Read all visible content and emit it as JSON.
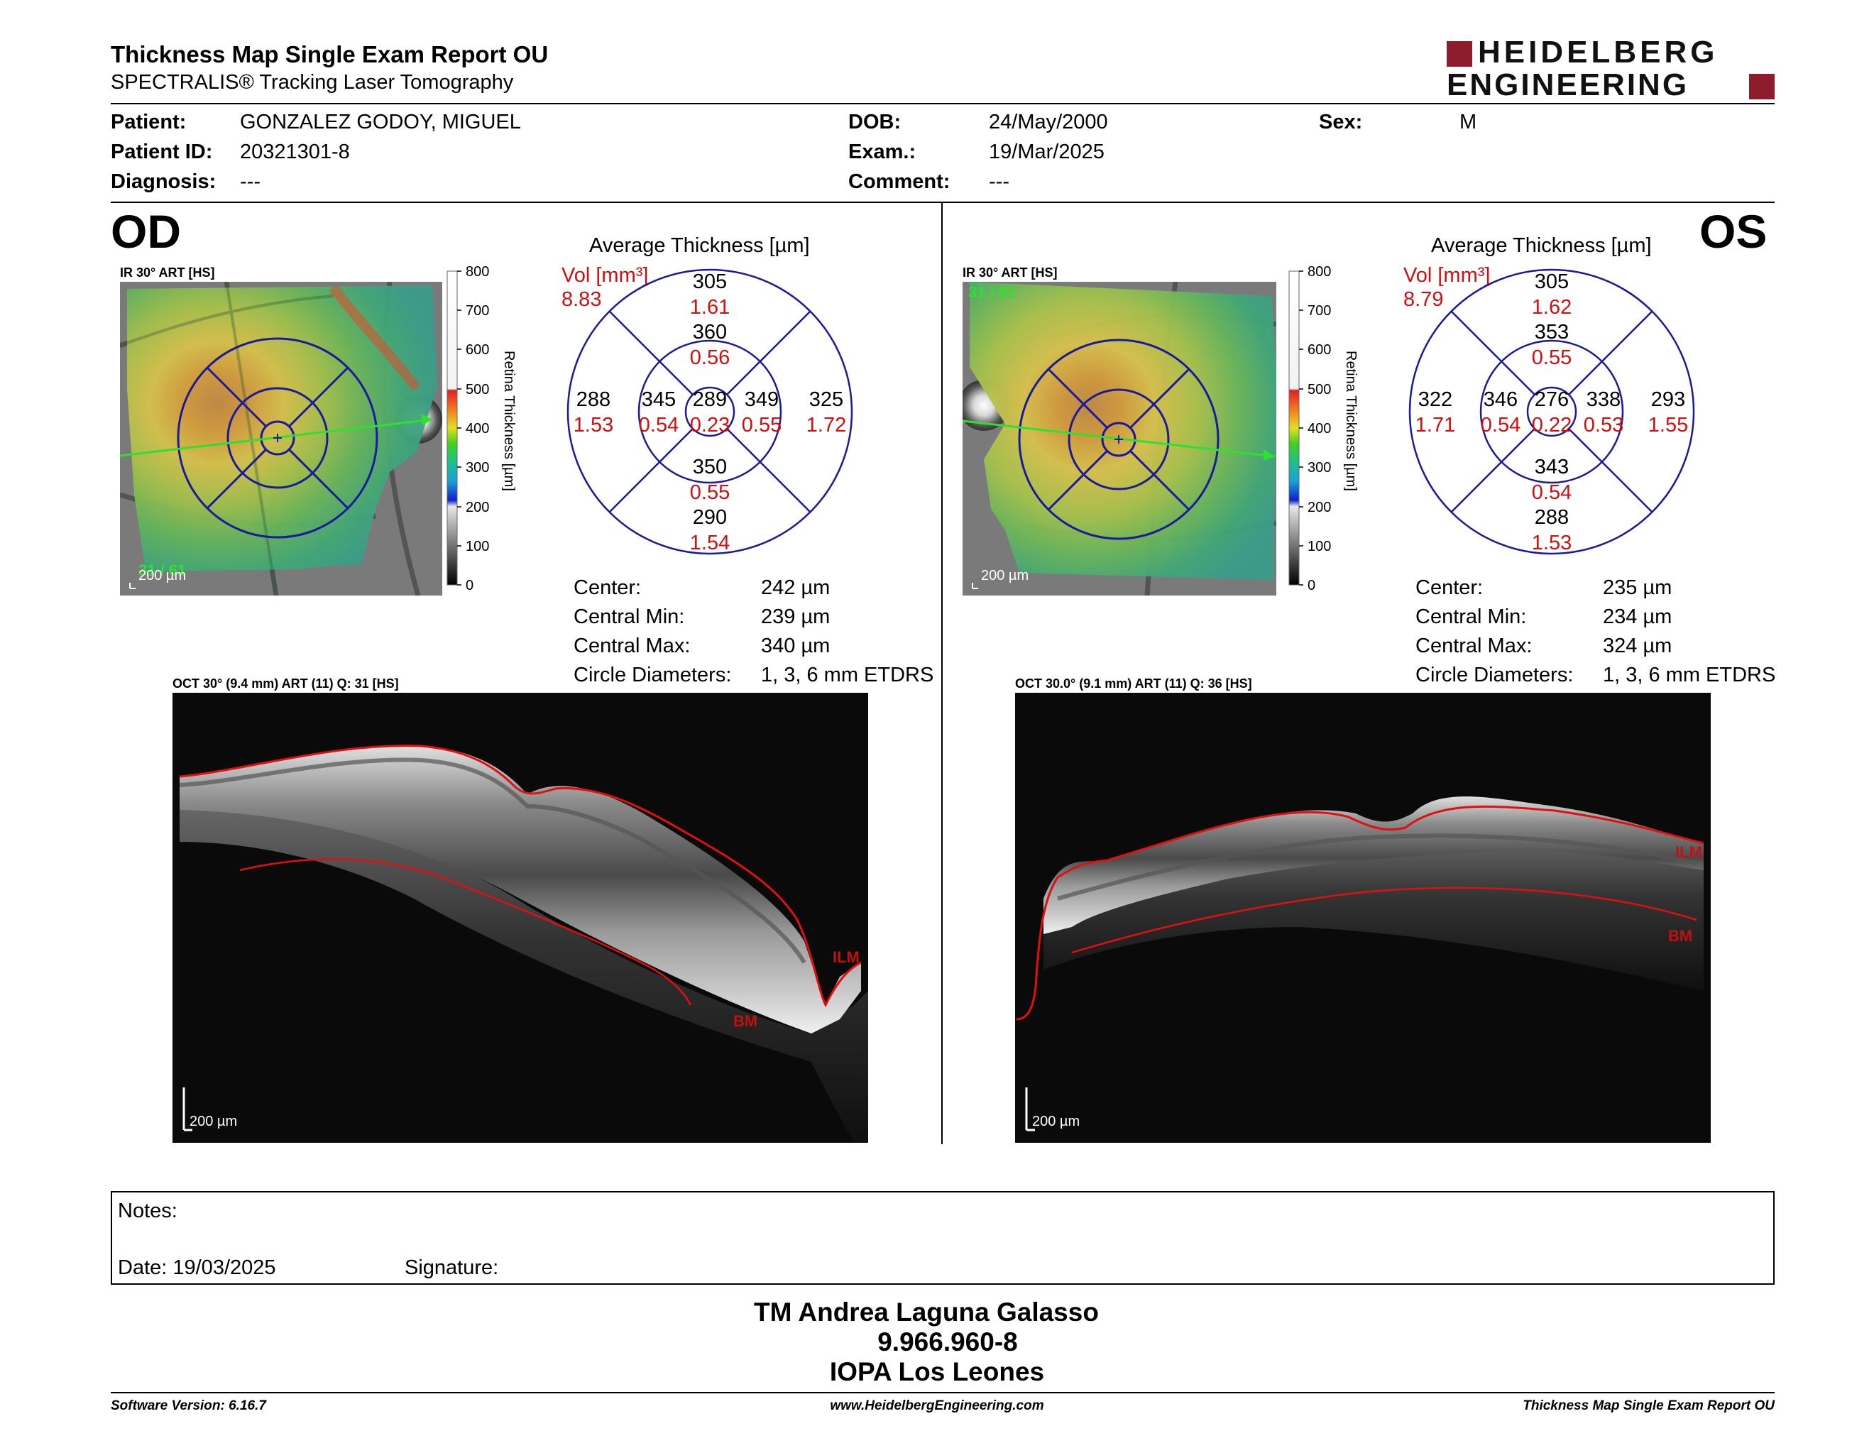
{
  "header": {
    "title": "Thickness Map Single Exam Report OU",
    "subtitle": "SPECTRALIS® Tracking Laser Tomography",
    "logo_line1": "HEIDELBERG",
    "logo_line2": "ENGINEERING"
  },
  "patient": {
    "patient_label": "Patient:",
    "patient_value": "GONZALEZ GODOY, MIGUEL",
    "id_label": "Patient ID:",
    "id_value": "20321301-8",
    "diagnosis_label": "Diagnosis:",
    "diagnosis_value": "---",
    "dob_label": "DOB:",
    "dob_value": "24/May/2000",
    "exam_label": "Exam.:",
    "exam_value": "19/Mar/2025",
    "comment_label": "Comment:",
    "comment_value": "---",
    "sex_label": "Sex:",
    "sex_value": "M"
  },
  "scale": {
    "ticks": [
      "800",
      "700",
      "600",
      "500",
      "400",
      "300",
      "200",
      "100",
      "0"
    ],
    "label": "Retina Thickness [µm]"
  },
  "od": {
    "eye": "OD",
    "fundus_label": "IR 30° ART [HS]",
    "fundus_quality": "31 / 61",
    "fundus_scalebar": "200 µm",
    "avg_title": "Average Thickness [µm]",
    "vol_label": "Vol [mm³]",
    "vol_value": "8.83",
    "sectors": {
      "center_t": "289",
      "center_v": "0.23",
      "inner_sup_t": "360",
      "inner_sup_v": "0.56",
      "inner_inf_t": "350",
      "inner_inf_v": "0.55",
      "inner_left_t": "345",
      "inner_left_v": "0.54",
      "inner_right_t": "349",
      "inner_right_v": "0.55",
      "outer_sup_t": "305",
      "outer_sup_v": "1.61",
      "outer_inf_t": "290",
      "outer_inf_v": "1.54",
      "outer_left_t": "288",
      "outer_left_v": "1.53",
      "outer_right_t": "325",
      "outer_right_v": "1.72"
    },
    "stats": {
      "center_label": "Center:",
      "center_value": "242 µm",
      "cmin_label": "Central Min:",
      "cmin_value": "239 µm",
      "cmax_label": "Central Max:",
      "cmax_value": "340 µm",
      "diam_label": "Circle Diameters:",
      "diam_value": "1, 3, 6 mm ETDRS"
    },
    "oct_label": "OCT 30° (9.4 mm) ART (11) Q: 31 [HS]",
    "oct_scalebar": "200 µm",
    "ilm": "ILM",
    "bm": "BM"
  },
  "os": {
    "eye": "OS",
    "fundus_label": "IR 30° ART [HS]",
    "fundus_quality": "31 / 61",
    "fundus_scalebar": "200 µm",
    "avg_title": "Average Thickness [µm]",
    "vol_label": "Vol [mm³]",
    "vol_value": "8.79",
    "sectors": {
      "center_t": "276",
      "center_v": "0.22",
      "inner_sup_t": "353",
      "inner_sup_v": "0.55",
      "inner_inf_t": "343",
      "inner_inf_v": "0.54",
      "inner_left_t": "346",
      "inner_left_v": "0.54",
      "inner_right_t": "338",
      "inner_right_v": "0.53",
      "outer_sup_t": "305",
      "outer_sup_v": "1.62",
      "outer_inf_t": "288",
      "outer_inf_v": "1.53",
      "outer_left_t": "322",
      "outer_left_v": "1.71",
      "outer_right_t": "293",
      "outer_right_v": "1.55"
    },
    "stats": {
      "center_label": "Center:",
      "center_value": "235 µm",
      "cmin_label": "Central Min:",
      "cmin_value": "234 µm",
      "cmax_label": "Central Max:",
      "cmax_value": "324 µm",
      "diam_label": "Circle Diameters:",
      "diam_value": "1, 3, 6 mm ETDRS"
    },
    "oct_label": "OCT 30.0° (9.1 mm) ART (11) Q: 36 [HS]",
    "oct_scalebar": "200 µm",
    "ilm": "ILM",
    "bm": "BM"
  },
  "notes": {
    "notes_label": "Notes:",
    "date_label": "Date: 19/03/2025",
    "signature_label": "Signature:"
  },
  "signer": {
    "line1": "TM Andrea Laguna Galasso",
    "line2": "9.966.960-8",
    "line3": "IOPA Los Leones"
  },
  "footer": {
    "left": "Software Version: 6.16.7",
    "center": "www.HeidelbergEngineering.com",
    "right": "Thickness Map Single Exam Report OU"
  }
}
